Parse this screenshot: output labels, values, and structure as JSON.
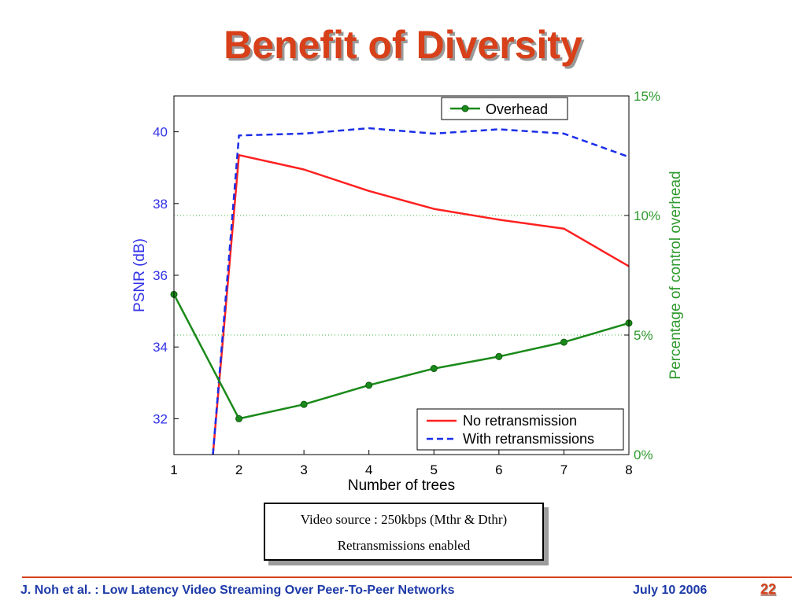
{
  "slide": {
    "title": "Benefit of Diversity",
    "footer_left": "J. Noh et al. : Low Latency Video Streaming Over Peer-To-Peer Networks",
    "footer_date": "July 10 2006",
    "page_number": "22",
    "caption_line1": "Video source : 250kbps (Mthr & Dthr)",
    "caption_line2": "Retransmissions enabled"
  },
  "chart_data": {
    "type": "line",
    "title": "",
    "xlabel": "Number of trees",
    "ylabel_left": "PSNR (dB)",
    "ylabel_right": "Percentage of control overhead",
    "x": [
      1,
      2,
      3,
      4,
      5,
      6,
      7,
      8
    ],
    "xlim": [
      1,
      8
    ],
    "ylim_left": [
      31,
      41
    ],
    "yticks_left": [
      "32",
      "34",
      "36",
      "38",
      "40"
    ],
    "ylim_right": [
      0,
      15
    ],
    "yticks_right": [
      "0%",
      "5%",
      "10%",
      "15%"
    ],
    "right_gridlines": [
      5,
      10
    ],
    "series": [
      {
        "name": "No retransmission",
        "axis": "left",
        "color": "#ff2020",
        "style": "solid",
        "x": [
          1.6,
          2,
          3,
          4,
          5,
          6,
          7,
          8
        ],
        "values": [
          31,
          39.35,
          38.95,
          38.35,
          37.85,
          37.55,
          37.3,
          36.25
        ]
      },
      {
        "name": "With retransmissions",
        "axis": "left",
        "color": "#1a2ee8",
        "style": "dashed",
        "x": [
          1.6,
          2,
          3,
          4,
          5,
          6,
          7,
          8
        ],
        "values": [
          31,
          39.9,
          39.95,
          40.1,
          39.95,
          40.07,
          39.95,
          39.3
        ]
      },
      {
        "name": "Overhead",
        "axis": "right",
        "color": "#1a8a1a",
        "style": "solid-marker",
        "x": [
          1,
          2,
          3,
          4,
          5,
          6,
          7,
          8
        ],
        "values": [
          6.7,
          1.5,
          2.1,
          2.9,
          3.6,
          4.1,
          4.7,
          5.5
        ]
      }
    ],
    "legend_top": "top-right",
    "legend_bottom": "bottom-right",
    "colors": {
      "left_axis": "#3232e8",
      "right_axis": "#2e9a2e",
      "grid": "#3cb43c"
    }
  }
}
